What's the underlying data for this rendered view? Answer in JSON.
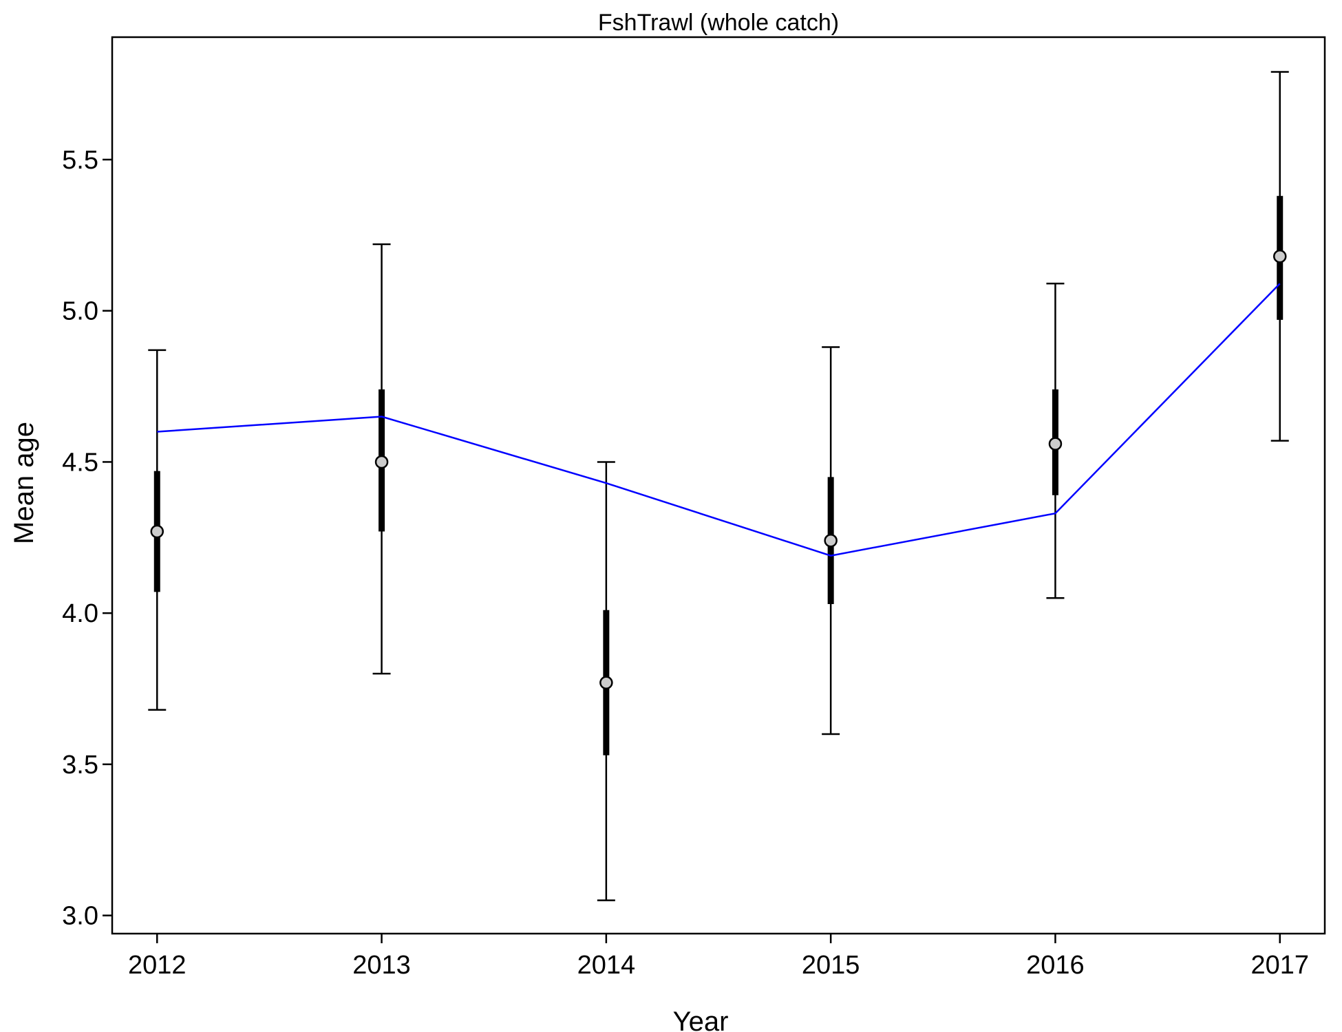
{
  "chart_data": {
    "type": "line",
    "title": "FshTrawl (whole catch)",
    "xlabel": "Year",
    "ylabel": "Mean age",
    "x": [
      2012,
      2013,
      2014,
      2015,
      2016,
      2017
    ],
    "x_tick_labels": [
      "2012",
      "2013",
      "2014",
      "2015",
      "2016",
      "2017"
    ],
    "y_ticks": [
      3.0,
      3.5,
      4.0,
      4.5,
      5.0,
      5.5
    ],
    "y_tick_labels": [
      "3.0",
      "3.5",
      "4.0",
      "4.5",
      "5.0",
      "5.5"
    ],
    "xlim": [
      2011.8,
      2017.2
    ],
    "ylim": [
      2.94,
      5.905
    ],
    "grid": false,
    "series": [
      {
        "kind": "observed",
        "marker": "circle",
        "marker_fill": "#cccccc",
        "values": [
          4.27,
          4.5,
          3.77,
          4.24,
          4.56,
          5.18
        ],
        "inner_low": [
          4.07,
          4.27,
          3.53,
          4.03,
          4.39,
          4.97
        ],
        "inner_high": [
          4.47,
          4.74,
          4.01,
          4.45,
          4.74,
          5.38
        ],
        "outer_low": [
          3.68,
          3.8,
          3.05,
          3.6,
          4.05,
          4.57
        ],
        "outer_high": [
          4.87,
          5.22,
          4.5,
          4.88,
          5.09,
          5.79
        ]
      },
      {
        "kind": "expected",
        "color": "#0000ff",
        "values": [
          4.6,
          4.65,
          4.43,
          4.19,
          4.33,
          5.09
        ]
      }
    ]
  }
}
